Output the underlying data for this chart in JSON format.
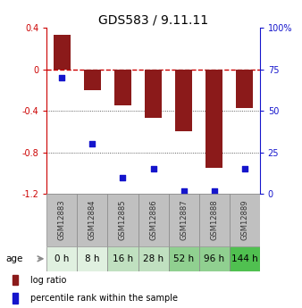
{
  "title": "GDS583 / 9.11.11",
  "samples": [
    "GSM12883",
    "GSM12884",
    "GSM12885",
    "GSM12886",
    "GSM12887",
    "GSM12888",
    "GSM12889"
  ],
  "ages": [
    "0 h",
    "8 h",
    "16 h",
    "28 h",
    "52 h",
    "96 h",
    "144 h"
  ],
  "log_ratio": [
    0.33,
    -0.2,
    -0.35,
    -0.47,
    -0.6,
    -0.95,
    -0.37
  ],
  "percentile_rank": [
    70,
    30,
    10,
    15,
    2,
    2,
    15
  ],
  "ylim": [
    -1.2,
    0.4
  ],
  "yticks_left": [
    -1.2,
    -0.8,
    -0.4,
    0.0,
    0.4
  ],
  "ytick_labels_left": [
    "-1.2",
    "-0.8",
    "-0.4",
    "0",
    "0.4"
  ],
  "yticks_right_pct": [
    0,
    25,
    50,
    75,
    100
  ],
  "ytick_labels_right": [
    "0",
    "25",
    "50",
    "75",
    "100%"
  ],
  "bar_color": "#8B1A1A",
  "dot_color": "#1515CC",
  "bar_width": 0.55,
  "zero_line_color": "#CC0000",
  "grid_color": "#333333",
  "age_bg_colors": [
    "#e0f0e0",
    "#e0f0e0",
    "#c0e0c0",
    "#c0e0c0",
    "#90d090",
    "#90d090",
    "#50c050"
  ],
  "sample_bg_color": "#c0c0c0",
  "legend_bar_color": "#8B1A1A",
  "legend_dot_color": "#1515CC",
  "title_fontsize": 10,
  "tick_fontsize": 7,
  "sample_fontsize": 6,
  "age_fontsize": 7.5
}
